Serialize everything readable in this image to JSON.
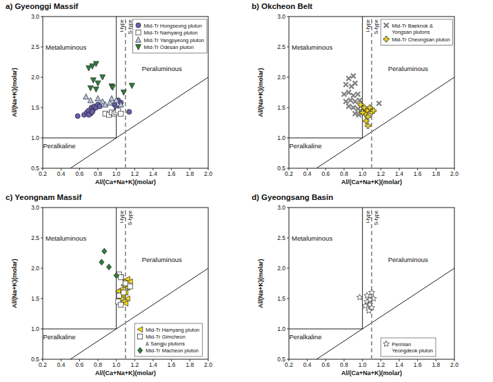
{
  "chart_data": [
    {
      "type": "scatter",
      "title": "a) Gyeonggi Massif",
      "x_label": "Al/(Ca+Na+K)(molar)",
      "y_label": "Al/(Na+K)(molar)",
      "xlim": [
        0.2,
        2.0
      ],
      "ylim": [
        0.5,
        3.0
      ],
      "xticks": [
        0.2,
        0.4,
        0.6,
        0.8,
        {
          "value": 1,
          "label": "1.0"
        },
        1.2,
        1.4,
        1.6,
        1.8,
        {
          "value": 2,
          "label": "2.0"
        }
      ],
      "yticks": [
        0.5,
        {
          "value": 1,
          "label": "1.0"
        },
        1.5,
        {
          "value": 2,
          "label": "2.0"
        },
        2.5,
        {
          "value": 3,
          "label": "3.0"
        }
      ],
      "legend": "upper right",
      "annotations": [
        "Metaluminous",
        "Peraluminous",
        "Peralkaline",
        "I-type",
        "S-type"
      ],
      "reference_lines": [
        {
          "x": [
            1,
            1
          ],
          "y": [
            1,
            3
          ]
        },
        {
          "x": [
            0.2,
            1
          ],
          "y": [
            1,
            1
          ]
        },
        {
          "x": [
            0.5,
            2
          ],
          "y": [
            0.5,
            2
          ]
        },
        {
          "x": [
            1.1,
            1.1
          ],
          "y": [
            0.5,
            3
          ],
          "line_style": "dashed",
          "color": "#999999"
        }
      ],
      "series": [
        {
          "name": "Mid-Tr Hongseong pluton",
          "marker": "circle",
          "color": "#6a5fae",
          "x": [
            0.58,
            0.65,
            0.68,
            0.7,
            0.72,
            0.73,
            0.75,
            0.76,
            0.78,
            0.8,
            0.82,
            0.7,
            0.74,
            0.98,
            1.02,
            1.05,
            1.0,
            1.14
          ],
          "values": [
            1.36,
            1.38,
            1.42,
            1.45,
            1.4,
            1.5,
            1.47,
            1.52,
            1.5,
            1.55,
            1.52,
            1.38,
            1.43,
            1.55,
            1.62,
            1.58,
            1.5,
            1.43
          ]
        },
        {
          "name": "Mid-Tr Namyang pluton",
          "marker": "square",
          "color": "#ffffff",
          "x": [
            0.88,
            0.92,
            0.95,
            0.98,
            1.0,
            1.02,
            1.05
          ],
          "values": [
            1.4,
            1.38,
            1.42,
            1.4,
            1.42,
            1.45,
            1.4
          ]
        },
        {
          "name": "Mid-Tr Yangpyeong pluton",
          "marker": "triangle-up",
          "color": "#b7c3e6",
          "x": [
            0.67,
            0.72,
            0.8,
            0.85,
            0.88,
            0.93,
            0.95,
            1.0,
            1.05
          ],
          "values": [
            1.68,
            1.62,
            1.65,
            1.6,
            1.55,
            1.58,
            1.65,
            1.62,
            1.55
          ]
        },
        {
          "name": "Mid-Tr Odesan pluton",
          "marker": "triangle-down",
          "color": "#2f7d3a",
          "x": [
            0.7,
            0.74,
            0.78,
            0.75,
            0.72,
            0.8,
            0.85,
            0.95,
            0.96,
            1.17,
            1.08,
            0.78
          ],
          "values": [
            2.15,
            2.18,
            2.22,
            1.95,
            1.82,
            1.9,
            2.0,
            1.85,
            1.83,
            1.86,
            1.75,
            1.8
          ]
        }
      ]
    },
    {
      "type": "scatter",
      "title": "b) Okcheon Belt",
      "x_label": "Al/(Ca+Na+K)(molar)",
      "y_label": "Al/(Na+K)(molar)",
      "xlim": [
        0.2,
        2.0
      ],
      "ylim": [
        0.5,
        3.0
      ],
      "xticks": [
        0.2,
        0.4,
        0.6,
        0.8,
        {
          "value": 1,
          "label": "1.0"
        },
        1.2,
        1.4,
        1.6,
        1.8,
        {
          "value": 2,
          "label": "2.0"
        }
      ],
      "yticks": [
        0.5,
        {
          "value": 1,
          "label": "1.0"
        },
        1.5,
        {
          "value": 2,
          "label": "2.0"
        },
        2.5,
        {
          "value": 3,
          "label": "3.0"
        }
      ],
      "legend": "upper right",
      "annotations": [
        "Metaluminous",
        "Peraluminous",
        "Peralkaline",
        "I-type",
        "S-type"
      ],
      "reference_lines": [
        {
          "x": [
            1,
            1
          ],
          "y": [
            1,
            3
          ]
        },
        {
          "x": [
            0.2,
            1
          ],
          "y": [
            1,
            1
          ]
        },
        {
          "x": [
            0.5,
            2
          ],
          "y": [
            0.5,
            2
          ]
        },
        {
          "x": [
            1.1,
            1.1
          ],
          "y": [
            0.5,
            3
          ],
          "line_style": "dashed",
          "color": "#999999"
        }
      ],
      "series": [
        {
          "name": "Mid-Tr Baeknok & Yongsan plutons",
          "marker": "x",
          "color": "#808080",
          "x": [
            0.85,
            0.9,
            0.82,
            0.88,
            0.92,
            0.8,
            0.85,
            0.9,
            0.95,
            0.82,
            0.87,
            0.92,
            0.97,
            0.85,
            0.9,
            0.95,
            0.98,
            0.92,
            0.96,
            1.0,
            1.18
          ],
          "values": [
            1.98,
            2.02,
            1.88,
            1.85,
            1.9,
            1.72,
            1.75,
            1.7,
            1.72,
            1.6,
            1.62,
            1.6,
            1.62,
            1.52,
            1.5,
            1.48,
            1.45,
            1.4,
            1.38,
            1.42,
            1.57
          ]
        },
        {
          "name": "Mid-Tr Cheongsan pluton",
          "marker": "plus",
          "color": "#f7dc1e",
          "x": [
            0.98,
            1.02,
            1.05,
            1.08,
            1.1,
            1.03,
            1.06,
            1.0,
            1.06,
            1.04,
            1.12
          ],
          "values": [
            1.55,
            1.5,
            1.45,
            1.5,
            1.42,
            1.4,
            1.35,
            1.42,
            1.2,
            1.28,
            1.45
          ]
        }
      ]
    },
    {
      "type": "scatter",
      "title": "c) Yeongnam Massif",
      "x_label": "Al/(Ca+Na+K)(molar)",
      "y_label": "Al/(Na+K)(molar)",
      "xlim": [
        0.2,
        2.0
      ],
      "ylim": [
        0.5,
        3.0
      ],
      "xticks": [
        0.2,
        0.4,
        0.6,
        0.8,
        {
          "value": 1,
          "label": "1.0"
        },
        1.2,
        1.4,
        1.6,
        1.8,
        {
          "value": 2,
          "label": "2.0"
        }
      ],
      "yticks": [
        0.5,
        {
          "value": 1,
          "label": "1.0"
        },
        1.5,
        {
          "value": 2,
          "label": "2.0"
        },
        2.5,
        {
          "value": 3,
          "label": "3.0"
        }
      ],
      "legend": "lower right",
      "annotations": [
        "Metaluminous",
        "Peraluminous",
        "Peralkaline",
        "I-type",
        "S-type"
      ],
      "reference_lines": [
        {
          "x": [
            1,
            1
          ],
          "y": [
            1,
            3
          ]
        },
        {
          "x": [
            0.2,
            1
          ],
          "y": [
            1,
            1
          ]
        },
        {
          "x": [
            0.5,
            2
          ],
          "y": [
            0.5,
            2
          ]
        },
        {
          "x": [
            1.1,
            1.1
          ],
          "y": [
            0.5,
            3
          ],
          "line_style": "dashed",
          "color": "#999999"
        }
      ],
      "series": [
        {
          "name": "Mid-Tr Hamyang pluton",
          "marker": "triangle-left",
          "color": "#f2d91a",
          "x": [
            1.05,
            1.1,
            1.12,
            1.15,
            1.08,
            1.12,
            1.05,
            1.1,
            1.03,
            1.07,
            1.12,
            1.05,
            1.08,
            1.1,
            1.02
          ],
          "values": [
            1.85,
            1.8,
            1.82,
            1.78,
            1.72,
            1.68,
            1.65,
            1.6,
            1.58,
            1.55,
            1.5,
            1.5,
            1.45,
            1.42,
            1.62
          ]
        },
        {
          "name": "Mid-Tr Gimcheon & Sangju plutons",
          "marker": "square",
          "color": "#ffffff",
          "x": [
            1.03,
            1.05,
            1.1,
            1.15,
            1.03,
            1.02,
            1.05,
            1.08
          ],
          "values": [
            1.9,
            1.85,
            1.75,
            1.7,
            1.55,
            1.45,
            1.4,
            1.6
          ]
        },
        {
          "name": "Mid-Tr Macheon pluton",
          "marker": "diamond",
          "color": "#2f7d3a",
          "x": [
            0.87,
            0.84,
            0.92,
            1.0
          ],
          "values": [
            2.28,
            2.1,
            2.02,
            1.88
          ]
        }
      ]
    },
    {
      "type": "scatter",
      "title": "d) Gyeongsang Basin",
      "x_label": "Al/(Ca+Na+K)(molar)",
      "y_label": "Al/(Na+K)(molar)",
      "xlim": [
        0.2,
        2.0
      ],
      "ylim": [
        0.5,
        3.0
      ],
      "xticks": [
        0.2,
        0.4,
        0.6,
        0.8,
        {
          "value": 1,
          "label": "1.0"
        },
        1.2,
        1.4,
        1.6,
        1.8,
        {
          "value": 2,
          "label": "2.0"
        }
      ],
      "yticks": [
        0.5,
        {
          "value": 1,
          "label": "1.0"
        },
        1.5,
        {
          "value": 2,
          "label": "2.0"
        },
        2.5,
        {
          "value": 3,
          "label": "3.0"
        }
      ],
      "legend": "lower right",
      "annotations": [
        "Metaluminous",
        "Peraluminous",
        "Peralkaline",
        "I-type",
        "S-type"
      ],
      "reference_lines": [
        {
          "x": [
            1,
            1
          ],
          "y": [
            1,
            3
          ]
        },
        {
          "x": [
            0.2,
            1
          ],
          "y": [
            1,
            1
          ]
        },
        {
          "x": [
            0.5,
            2
          ],
          "y": [
            0.5,
            2
          ]
        },
        {
          "x": [
            1.1,
            1.1
          ],
          "y": [
            0.5,
            3
          ],
          "line_style": "dashed",
          "color": "#999999"
        }
      ],
      "series": [
        {
          "name": "Permian Yeongdeok pluton",
          "marker": "star",
          "color": "#ffffff",
          "x": [
            0.97,
            1.05,
            1.08,
            1.1,
            1.12,
            1.1,
            1.07,
            1.05,
            1.08,
            1.03
          ],
          "values": [
            1.52,
            1.45,
            1.4,
            1.35,
            1.5,
            1.6,
            1.3,
            1.55,
            1.48,
            1.38
          ]
        }
      ]
    }
  ]
}
